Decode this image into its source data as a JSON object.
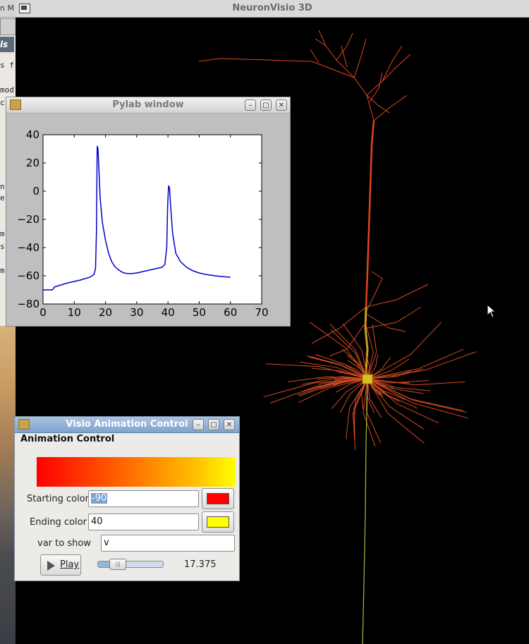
{
  "background_window": {
    "title_fragment": "n M",
    "tab_fragment": "ls",
    "text_fragments": [
      "s f",
      "mod",
      "c",
      "n",
      "e",
      "m",
      "s",
      "m"
    ]
  },
  "main_window": {
    "title": "NeuronVisio 3D",
    "menu_icon": "window-menu-icon"
  },
  "pylab_window": {
    "title": "Pylab window",
    "icon": "pylab-app-icon",
    "controls": [
      "minimize-icon",
      "maximize-icon",
      "close-icon"
    ]
  },
  "chart_data": {
    "type": "line",
    "title": "",
    "xlabel": "",
    "ylabel": "",
    "xlim": [
      0,
      70
    ],
    "ylim": [
      -80,
      40
    ],
    "xticks": [
      "0",
      "10",
      "20",
      "30",
      "40",
      "50",
      "60",
      "70"
    ],
    "yticks": [
      "40",
      "20",
      "0",
      "−20",
      "−40",
      "−60",
      "−80"
    ],
    "grid": false,
    "series": [
      {
        "color": "#0000cc",
        "x": [
          0,
          2,
          2.9,
          3.2,
          3.6,
          5,
          8,
          12,
          15,
          16.3,
          16.8,
          17.1,
          17.35,
          17.6,
          17.9,
          18.3,
          19,
          20,
          21,
          22,
          23,
          24,
          25,
          26,
          27,
          28,
          30,
          32,
          34,
          36,
          38,
          39,
          39.6,
          39.9,
          40.2,
          40.5,
          40.9,
          41.5,
          42.5,
          44,
          46,
          48,
          50,
          52,
          55,
          58,
          60
        ],
        "y": [
          -70,
          -70,
          -70,
          -69.5,
          -68,
          -67,
          -65,
          -63,
          -61,
          -59,
          -55,
          -30,
          32,
          30,
          15,
          -5,
          -22,
          -35,
          -44,
          -50,
          -53.5,
          -55.5,
          -57,
          -58,
          -58.4,
          -58.5,
          -58,
          -57,
          -56,
          -55,
          -54,
          -52,
          -40,
          -10,
          4,
          2,
          -12,
          -30,
          -44,
          -50,
          -54,
          -56.5,
          -58,
          -59,
          -60,
          -60.7,
          -61
        ]
      }
    ]
  },
  "animation_control": {
    "window_title": "Visio Animation Control",
    "section_title": "Animation Control",
    "icon": "visio-app-icon",
    "controls": [
      "minimize-icon",
      "maximize-icon",
      "close-icon"
    ],
    "gradient_colors": [
      "#ff0000",
      "#ff6a00",
      "#ffc000",
      "#ffff00"
    ],
    "starting_color_label": "Starting color",
    "starting_color_value": "-90",
    "starting_color_swatch": "#ff0000",
    "ending_color_label": "Ending color",
    "ending_color_value": "40",
    "ending_color_swatch": "#ffff00",
    "var_label": "var to show",
    "var_value": "v",
    "play_label": "Play",
    "play_icon": "play-icon",
    "slider_position": 0.24,
    "time_value": "17.375"
  },
  "neuron_colors": {
    "apical": "#e0451f",
    "trunk_lower": "#c9a020",
    "soma": "#d8c020",
    "axon": "#9ec23a",
    "basal": "#d24a20"
  }
}
